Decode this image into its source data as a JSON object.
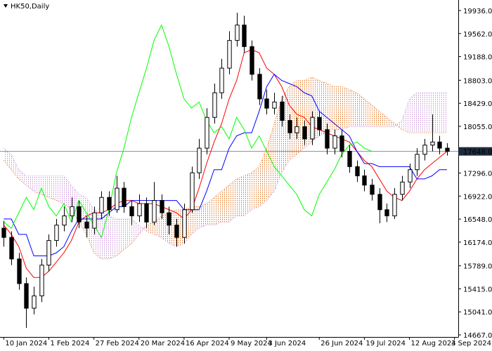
{
  "chart_data": {
    "type": "candlestick",
    "title": "HK50,Daily",
    "open": [
      16400,
      16250,
      15900,
      15500,
      15100,
      15300,
      15800,
      16200,
      16450,
      16600,
      16750,
      16500,
      16400,
      16650,
      16900,
      16700,
      17050,
      16750,
      16600,
      16800,
      16500,
      16850,
      16650,
      16450,
      16250,
      16700,
      17300,
      17700,
      18200,
      18600,
      19000,
      19450,
      19700,
      19350,
      18900,
      18500,
      18350,
      18450,
      18150,
      17950,
      18050,
      17850,
      18200,
      18000,
      17700,
      17900,
      17650,
      17400,
      17250,
      17100,
      16950,
      16700,
      16600,
      16950,
      17150,
      17350,
      17600,
      17750,
      17800,
      17700
    ],
    "high": [
      16520,
      16350,
      16000,
      15600,
      15450,
      15900,
      16300,
      16550,
      16750,
      16900,
      16850,
      16600,
      16750,
      17000,
      17000,
      17250,
      17150,
      16850,
      16950,
      16900,
      17150,
      16950,
      16750,
      16550,
      16800,
      17400,
      17850,
      18350,
      18750,
      19150,
      19600,
      19900,
      19850,
      19450,
      19000,
      18650,
      18600,
      18550,
      18250,
      18200,
      18150,
      18300,
      18300,
      18100,
      18000,
      18000,
      17750,
      17500,
      17350,
      17200,
      17050,
      16800,
      17050,
      17250,
      17450,
      17700,
      17850,
      18250,
      17900,
      17780
    ],
    "low": [
      16100,
      15800,
      15400,
      14780,
      15000,
      15200,
      15700,
      16100,
      16350,
      16500,
      16400,
      16250,
      16300,
      16550,
      16600,
      16650,
      16650,
      16450,
      16500,
      16400,
      16450,
      16550,
      16300,
      16100,
      16150,
      16650,
      17200,
      17600,
      18100,
      18500,
      18900,
      19350,
      19250,
      18800,
      18400,
      18250,
      18250,
      18050,
      17850,
      17850,
      17750,
      17750,
      17900,
      17600,
      17600,
      17550,
      17300,
      17150,
      17000,
      16850,
      16480,
      16500,
      16550,
      16850,
      17050,
      17250,
      17500,
      17650,
      17600,
      17580
    ],
    "close": [
      16250,
      15900,
      15500,
      15100,
      15300,
      15800,
      16200,
      16450,
      16600,
      16750,
      16500,
      16400,
      16650,
      16900,
      16700,
      17050,
      16750,
      16600,
      16800,
      16500,
      16850,
      16650,
      16450,
      16250,
      16700,
      17300,
      17700,
      18200,
      18600,
      19000,
      19450,
      19700,
      19350,
      18900,
      18500,
      18350,
      18450,
      18150,
      17950,
      18050,
      17850,
      18200,
      18000,
      17700,
      17900,
      17650,
      17400,
      17250,
      17100,
      16950,
      16700,
      16600,
      16950,
      17150,
      17350,
      17600,
      17750,
      17800,
      17700,
      17648
    ],
    "up_color": "#ffffff",
    "down_color": "#000000",
    "wick_color": "#000000",
    "lines": [
      {
        "color": "#ff0000",
        "values": [
          16450,
          16300,
          16100,
          15750,
          15600,
          15600,
          15700,
          15850,
          16000,
          16200,
          16500,
          16600,
          16650,
          16650,
          16700,
          16800,
          16850,
          16850,
          16800,
          16800,
          16800,
          16750,
          16700,
          16650,
          16550,
          16700,
          17050,
          17450,
          17800,
          18100,
          18500,
          18800,
          19250,
          19300,
          19250,
          19000,
          18900,
          18700,
          18400,
          18250,
          18200,
          18050,
          18000,
          17950,
          17900,
          17850,
          17800,
          17650,
          17500,
          17400,
          17200,
          17000,
          16900,
          16850,
          17000,
          17200,
          17350,
          17450,
          17550,
          17650
        ]
      },
      {
        "color": "#0000ff",
        "values": [
          16550,
          16550,
          16300,
          16300,
          15950,
          15950,
          15950,
          16000,
          16100,
          16350,
          16550,
          16550,
          16550,
          16550,
          16650,
          16750,
          16750,
          16850,
          16850,
          16850,
          16850,
          16850,
          16850,
          16850,
          16700,
          16700,
          16700,
          17000,
          17350,
          17350,
          17700,
          17900,
          17950,
          17950,
          18300,
          18700,
          18900,
          18800,
          18750,
          18700,
          18600,
          18550,
          18300,
          18200,
          18100,
          18000,
          17900,
          17650,
          17450,
          17450,
          17400,
          17400,
          17400,
          17400,
          17400,
          17200,
          17200,
          17250,
          17350,
          17350
        ]
      },
      {
        "color": "#00ff00",
        "values": [
          16500,
          16400,
          16650,
          16900,
          16700,
          17050,
          16750,
          16600,
          16800,
          16500,
          16850,
          16650,
          16450,
          16250,
          16700,
          17300,
          17700,
          18200,
          18600,
          19000,
          19450,
          19700,
          19350,
          18900,
          18500,
          18350,
          18450,
          18150,
          17950,
          18050,
          17850,
          18200,
          18000,
          17700,
          17900,
          17650,
          17400,
          17250,
          17100,
          16950,
          16700,
          16600,
          16950,
          17150,
          17350,
          17600,
          17750,
          17800,
          17700,
          17648,
          null,
          null,
          null,
          null,
          null,
          null,
          null,
          null,
          null,
          null
        ]
      }
    ],
    "cloud": {
      "span_a": {
        "color": "#e07020",
        "values": [
          17500,
          17350,
          17200,
          17100,
          17000,
          16950,
          16900,
          16850,
          16800,
          16700,
          16500,
          16300,
          16000,
          15900,
          15900,
          15950,
          16050,
          16150,
          16300,
          16450,
          16500,
          16600,
          16650,
          16700,
          16700,
          16750,
          16750,
          16800,
          16900,
          17000,
          17100,
          17200,
          17250,
          17300,
          17400,
          17700,
          18100,
          18500,
          18700,
          18800,
          18800,
          18850,
          18800,
          18750,
          18700,
          18700,
          18650,
          18600,
          18500,
          18400,
          18300,
          18200,
          18100,
          18000,
          17950,
          17950,
          17950,
          17950,
          17950,
          17950
        ]
      },
      "span_b": {
        "color": "#c890d8",
        "values": [
          17700,
          17600,
          17350,
          17250,
          17250,
          17250,
          17250,
          17250,
          17250,
          17100,
          16950,
          16900,
          16700,
          16650,
          16600,
          16550,
          16550,
          16550,
          16450,
          16350,
          16300,
          16250,
          16150,
          16100,
          16150,
          16300,
          16400,
          16450,
          16450,
          16500,
          16500,
          16600,
          16600,
          16700,
          16750,
          16850,
          17000,
          17300,
          17500,
          17600,
          17700,
          17800,
          17900,
          17950,
          18000,
          18000,
          18050,
          18050,
          18050,
          18050,
          18050,
          18050,
          18050,
          18150,
          18500,
          18600,
          18600,
          18600,
          18600,
          18600
        ]
      }
    },
    "current_price": {
      "value": 17648,
      "label": "17648.0",
      "color": "#1e2b3c",
      "line_color": "#7f8ea8"
    },
    "xlim": [
      -0.5,
      60.5
    ],
    "xticks": [
      {
        "value": 0,
        "label": "10 Jan 2024"
      },
      {
        "value": 6,
        "label": "1 Feb 2024"
      },
      {
        "value": 12,
        "label": "27 Feb 2024"
      },
      {
        "value": 18,
        "label": "20 Mar 2024"
      },
      {
        "value": 24,
        "label": "16 Apr 2024"
      },
      {
        "value": 30,
        "label": "9 May 2024"
      },
      {
        "value": 35,
        "label": "3 Jun 2024"
      },
      {
        "value": 42,
        "label": "26 Jun 2024"
      },
      {
        "value": 48,
        "label": "19 Jul 2024"
      },
      {
        "value": 54,
        "label": "12 Aug 2024"
      },
      {
        "value": 60,
        "label": "3 Sep 2024"
      }
    ],
    "ylim": [
      14633,
      20107
    ],
    "yticks": [
      {
        "value": 19936,
        "label": "19936.0"
      },
      {
        "value": 19562,
        "label": "19562.0"
      },
      {
        "value": 19188,
        "label": "19188.0"
      },
      {
        "value": 18803,
        "label": "18803.0"
      },
      {
        "value": 18429,
        "label": "18429.0"
      },
      {
        "value": 18055,
        "label": "18055.0"
      },
      {
        "value": 17296,
        "label": "17296.0"
      },
      {
        "value": 16922,
        "label": "16922.0"
      },
      {
        "value": 16548,
        "label": "16548.0"
      },
      {
        "value": 16174,
        "label": "16174.0"
      },
      {
        "value": 15789,
        "label": "15789.0"
      },
      {
        "value": 15415,
        "label": "15415.0"
      },
      {
        "value": 15041,
        "label": "15041.0"
      },
      {
        "value": 14667,
        "label": "14667.0"
      }
    ]
  }
}
